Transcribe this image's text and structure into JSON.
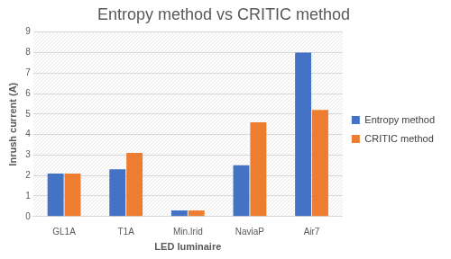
{
  "chart_data": {
    "type": "bar",
    "title": "Entropy method vs CRITIC method",
    "x_label": "LED luminaire",
    "y_label": "Inrush current (A)",
    "categories": [
      "GL1A",
      "T1A",
      "Min.Irid",
      "NaviaP",
      "Air7"
    ],
    "series": [
      {
        "name": "Entropy method",
        "color": "#4472c4",
        "values": [
          2.1,
          2.3,
          0.3,
          2.5,
          8.0
        ]
      },
      {
        "name": "CRITIC method",
        "color": "#ed7d31",
        "values": [
          2.1,
          3.1,
          0.3,
          4.6,
          5.2
        ]
      }
    ],
    "ylim": [
      0,
      9
    ],
    "yticks": [
      0,
      1,
      2,
      3,
      4,
      5,
      6,
      7,
      8,
      9
    ],
    "grid": true,
    "legend": "right"
  }
}
